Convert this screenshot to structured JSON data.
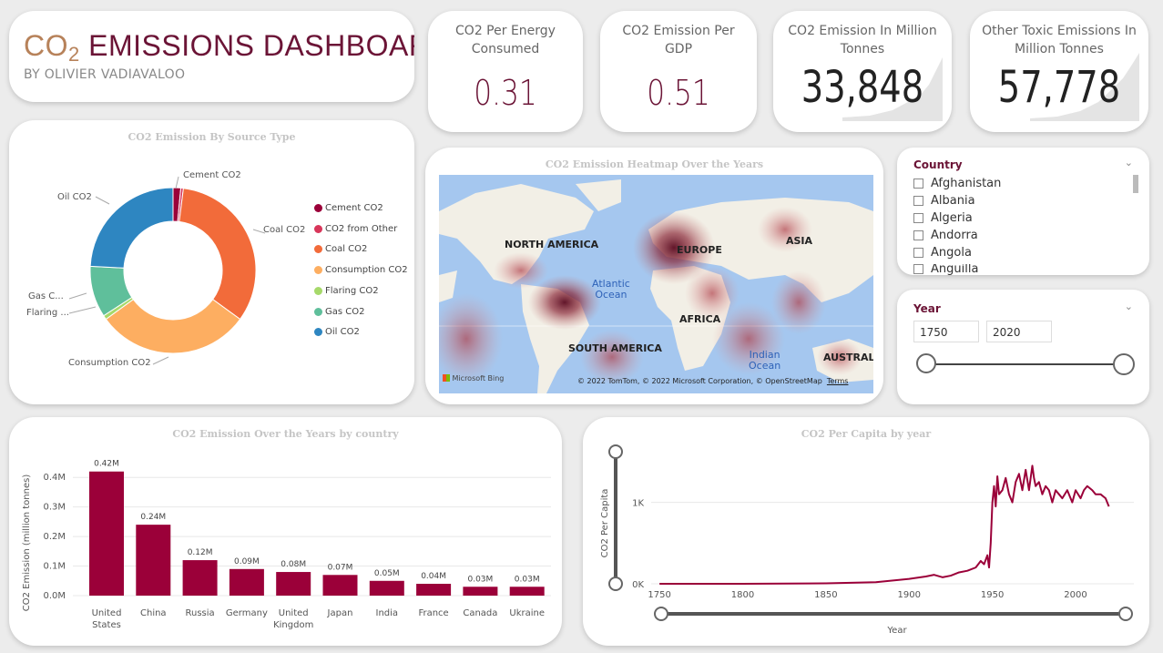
{
  "header": {
    "title_co": "CO",
    "title_sub": "2",
    "title_rest": " EMISSIONS DASHBOARD",
    "subtitle": "BY OLIVIER VADIAVALOO"
  },
  "kpis": [
    {
      "label": "CO2 Per Energy Consumed",
      "value": "0.31"
    },
    {
      "label": "CO2 Emission Per GDP",
      "value": "0.51"
    },
    {
      "label": "CO2 Emission In Million Tonnes",
      "value": "33,848"
    },
    {
      "label": "Other Toxic Emissions In Million Tonnes",
      "value": "57,778"
    }
  ],
  "colors": {
    "brand": "#6b1436",
    "bar": "#9b0039",
    "line": "#9b0039"
  },
  "donut": {
    "title": "CO2 Emission By Source Type",
    "slice_labels": {
      "cement": "Cement CO2",
      "coal": "Coal CO2",
      "oil": "Oil CO2",
      "gas": "Gas C...",
      "flaring": "Flaring ...",
      "consumption": "Consumption CO2"
    }
  },
  "map": {
    "title": "CO2 Emission Heatmap Over the Years",
    "labels": {
      "north_america": "NORTH AMERICA",
      "europe": "EUROPE",
      "asia": "ASIA",
      "africa": "AFRICA",
      "south_america": "SOUTH AMERICA",
      "australia": "AUSTRALI",
      "atlantic": "Atlantic",
      "atlantic2": "Ocean",
      "indian": "Indian",
      "indian2": "Ocean"
    },
    "bing": "Microsoft Bing",
    "credit": "© 2022 TomTom, © 2022 Microsoft Corporation, © OpenStreetMap",
    "terms": "Terms"
  },
  "country_slicer": {
    "title": "Country",
    "items": [
      "Afghanistan",
      "Albania",
      "Algeria",
      "Andorra",
      "Angola",
      "Anguilla"
    ]
  },
  "year_slicer": {
    "title": "Year",
    "from": "1750",
    "to": "2020"
  },
  "chart_data": [
    {
      "type": "pie",
      "title": "CO2 Emission By Source Type",
      "categories": [
        "Cement CO2",
        "CO2 from Other",
        "Coal CO2",
        "Consumption CO2",
        "Flaring CO2",
        "Gas CO2",
        "Oil CO2"
      ],
      "values": [
        1.5,
        0.5,
        33,
        30,
        0.8,
        10,
        24.2
      ],
      "colors": [
        "#9b0039",
        "#d8365a",
        "#f26b3a",
        "#fdae61",
        "#a6d96a",
        "#5fbf9b",
        "#2e86c1"
      ],
      "legend": "right"
    },
    {
      "type": "bar",
      "title": "CO2 Emission Over the Years by country",
      "ylabel": "CO2 Emission (million tonnes)",
      "categories": [
        "United States",
        "China",
        "Russia",
        "Germany",
        "United Kingdom",
        "Japan",
        "India",
        "France",
        "Canada",
        "Ukraine"
      ],
      "values": [
        0.42,
        0.24,
        0.12,
        0.09,
        0.08,
        0.07,
        0.05,
        0.04,
        0.03,
        0.03
      ],
      "data_labels": [
        "0.42M",
        "0.24M",
        "0.12M",
        "0.09M",
        "0.08M",
        "0.07M",
        "0.05M",
        "0.04M",
        "0.03M",
        "0.03M"
      ],
      "yticks": [
        "0.0M",
        "0.1M",
        "0.2M",
        "0.3M",
        "0.4M"
      ],
      "ylim": [
        0,
        0.45
      ]
    },
    {
      "type": "line",
      "title": "CO2 Per Capita by year",
      "xlabel": "Year",
      "ylabel": "CO2 Per Capita",
      "xticks": [
        "1750",
        "1800",
        "1850",
        "1900",
        "1950",
        "2000"
      ],
      "yticks": [
        "0K",
        "1K"
      ],
      "xlim": [
        1745,
        2035
      ],
      "ylim": [
        0,
        1600
      ],
      "x": [
        1750,
        1800,
        1850,
        1880,
        1900,
        1910,
        1915,
        1920,
        1925,
        1930,
        1935,
        1940,
        1943,
        1945,
        1947,
        1948,
        1949,
        1950,
        1951,
        1952,
        1953,
        1954,
        1956,
        1958,
        1960,
        1962,
        1964,
        1966,
        1968,
        1970,
        1972,
        1974,
        1975,
        1976,
        1978,
        1980,
        1982,
        1984,
        1986,
        1988,
        1990,
        1992,
        1995,
        1998,
        2000,
        2003,
        2005,
        2007,
        2010,
        2012,
        2015,
        2018,
        2020
      ],
      "y": [
        0,
        0,
        5,
        20,
        60,
        90,
        110,
        80,
        100,
        140,
        160,
        200,
        280,
        240,
        350,
        200,
        500,
        1000,
        1200,
        950,
        1320,
        1100,
        1150,
        1300,
        1100,
        1000,
        1250,
        1350,
        1150,
        1400,
        1150,
        1450,
        1300,
        1200,
        1250,
        1100,
        1200,
        1150,
        1000,
        1150,
        1100,
        1050,
        1150,
        1000,
        1150,
        1050,
        1150,
        1200,
        1150,
        1100,
        1100,
        1050,
        950
      ]
    }
  ]
}
